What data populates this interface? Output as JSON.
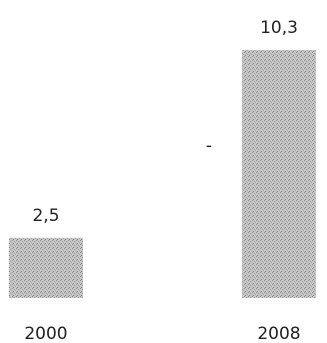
{
  "chart_data": {
    "type": "bar",
    "categories": [
      "2000",
      "2008"
    ],
    "values": [
      2.5,
      10.3
    ],
    "data_labels": [
      "2,5",
      "10,3"
    ],
    "title": "",
    "xlabel": "",
    "ylabel": "",
    "ylim": [
      0,
      10.3
    ],
    "grid": false,
    "legend": "none",
    "colors": {
      "bar_fill": "#c4c4c4",
      "bar_dot": "#8a8a8a",
      "text": "#222222"
    },
    "annotations": [
      "-"
    ]
  }
}
